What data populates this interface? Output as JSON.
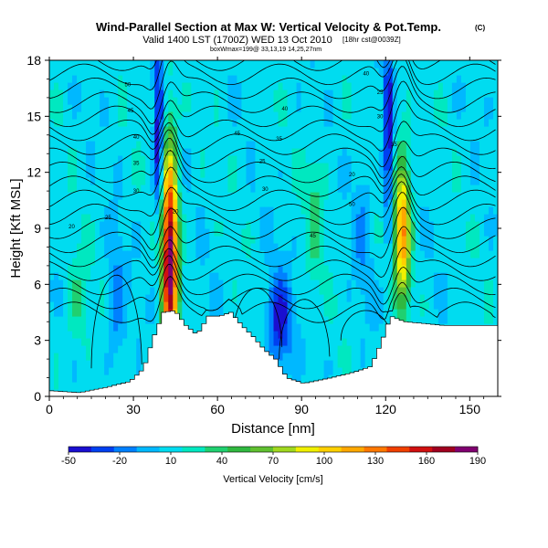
{
  "chart_data": {
    "type": "heatmap",
    "title": "Wind-Parallel Section at Max W: Vertical Velocity & Pot.Temp.",
    "title_mark": "(C)",
    "subtitle": "Valid 1400 LST (1700Z) WED 13 Oct 2010",
    "subtitle_note": "[18hr cst@0039Z]",
    "info_line": "boxWmax=199@ 33,13,19 14,25,27nm",
    "xlabel": "Distance [nm]",
    "ylabel": "Height [Kft MSL]",
    "xlim": [
      0,
      160
    ],
    "ylim": [
      0,
      18
    ],
    "xticks": [
      "0",
      "30",
      "60",
      "90",
      "120",
      "150"
    ],
    "yticks": [
      "0",
      "3",
      "6",
      "9",
      "12",
      "15",
      "18"
    ],
    "x_values": [
      0,
      30,
      60,
      90,
      120,
      150
    ],
    "y_values": [
      0,
      3,
      6,
      9,
      12,
      15,
      18
    ],
    "colorbar": {
      "label": "Vertical Velocity [cm/s]",
      "range": [
        -50,
        200
      ],
      "ticks": [
        "-50",
        "-20",
        "10",
        "40",
        "70",
        "100",
        "130",
        "160",
        "190"
      ],
      "colors": [
        "#1a0fd0",
        "#0040f0",
        "#0080ff",
        "#00b8ff",
        "#00dcf0",
        "#00e8c0",
        "#20d070",
        "#30b840",
        "#60c030",
        "#a0d820",
        "#f0f000",
        "#ffd000",
        "#ffa800",
        "#ff7800",
        "#f04000",
        "#d01010",
        "#a00020",
        "#800070"
      ]
    },
    "updraft_cores": [
      {
        "x": 43,
        "z_range": [
          3,
          12
        ],
        "w_max": 199
      },
      {
        "x": 126,
        "z_range": [
          6,
          12
        ],
        "w_max": 130
      }
    ],
    "downdraft_cores": [
      {
        "x": 39,
        "z_range": [
          10,
          18
        ],
        "w_min": -50
      },
      {
        "x": 121,
        "z_range": [
          10,
          18
        ],
        "w_min": -50
      },
      {
        "x": 82,
        "z_range": [
          2,
          6
        ],
        "w_min": -45
      }
    ],
    "terrain_kft": [
      [
        0,
        0.3
      ],
      [
        10,
        0.2
      ],
      [
        20,
        0.5
      ],
      [
        28,
        0.8
      ],
      [
        33,
        1.5
      ],
      [
        36,
        3.0
      ],
      [
        40,
        4.5
      ],
      [
        44,
        4.6
      ],
      [
        48,
        3.8
      ],
      [
        52,
        3.3
      ],
      [
        56,
        4.3
      ],
      [
        60,
        4.3
      ],
      [
        64,
        4.5
      ],
      [
        68,
        3.8
      ],
      [
        72,
        3.2
      ],
      [
        76,
        2.5
      ],
      [
        80,
        2.0
      ],
      [
        84,
        1.0
      ],
      [
        90,
        0.7
      ],
      [
        100,
        1.0
      ],
      [
        108,
        1.3
      ],
      [
        114,
        1.6
      ],
      [
        118,
        3.0
      ],
      [
        121,
        4.3
      ],
      [
        126,
        4.0
      ],
      [
        140,
        3.8
      ],
      [
        160,
        3.8
      ]
    ],
    "theta_contour_labels": [
      "20",
      "25",
      "30",
      "35",
      "40",
      "45",
      "50"
    ]
  }
}
